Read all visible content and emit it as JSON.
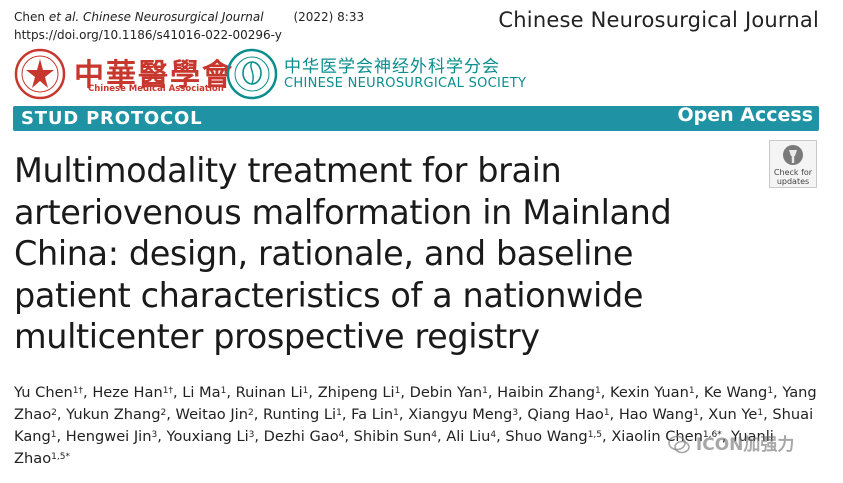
{
  "citation": {
    "authors": "Chen",
    "et_al": "et al.",
    "journal": "Chinese Neurosurgical Journal",
    "year_volume": "(2022) 8:33",
    "doi": "https://doi.org/10.1186/s41016-022-00296-y"
  },
  "journal_brand": "Chinese Neurosurgical Journal",
  "logos": {
    "cma_cn": "中華醫學會",
    "cma_en": "Chinese Medical Association",
    "cns_cn": "中华医学会神经外科学分会",
    "cns_en": "CHINESE NEUROSURGICAL SOCIETY"
  },
  "banner": {
    "article_type": "STUD PROTOCOL",
    "access": "Open Access",
    "color": "#1f93a3"
  },
  "check_updates": {
    "line1": "Check for",
    "line2": "updates"
  },
  "title": "Multimodality treatment for brain arteriovenous malformation in Mainland China: design, rationale, and baseline patient characteristics of a nationwide multicenter prospective registry",
  "authors": [
    {
      "name": "Yu Chen",
      "sup": "1†"
    },
    {
      "name": "Heze Han",
      "sup": "1†"
    },
    {
      "name": "Li Ma",
      "sup": "1"
    },
    {
      "name": "Ruinan Li",
      "sup": "1"
    },
    {
      "name": "Zhipeng Li",
      "sup": "1"
    },
    {
      "name": "Debin Yan",
      "sup": "1"
    },
    {
      "name": "Haibin Zhang",
      "sup": "1"
    },
    {
      "name": "Kexin Yuan",
      "sup": "1"
    },
    {
      "name": "Ke Wang",
      "sup": "1"
    },
    {
      "name": "Yang Zhao",
      "sup": "2"
    },
    {
      "name": "Yukun Zhang",
      "sup": "2"
    },
    {
      "name": "Weitao Jin",
      "sup": "2"
    },
    {
      "name": "Runting Li",
      "sup": "1"
    },
    {
      "name": "Fa Lin",
      "sup": "1"
    },
    {
      "name": "Xiangyu Meng",
      "sup": "3"
    },
    {
      "name": "Qiang Hao",
      "sup": "1"
    },
    {
      "name": "Hao Wang",
      "sup": "1"
    },
    {
      "name": "Xun Ye",
      "sup": "1"
    },
    {
      "name": "Shuai Kang",
      "sup": "1"
    },
    {
      "name": "Hengwei Jin",
      "sup": "3"
    },
    {
      "name": "Youxiang Li",
      "sup": "3"
    },
    {
      "name": "Dezhi Gao",
      "sup": "4"
    },
    {
      "name": "Shibin Sun",
      "sup": "4"
    },
    {
      "name": "Ali Liu",
      "sup": "4"
    },
    {
      "name": "Shuo Wang",
      "sup": "1,5"
    },
    {
      "name": "Xiaolin Chen",
      "sup": "1,6*"
    },
    {
      "name": "Yuanli Zhao",
      "sup": "1,5*"
    }
  ],
  "watermark": "ICON加强力"
}
